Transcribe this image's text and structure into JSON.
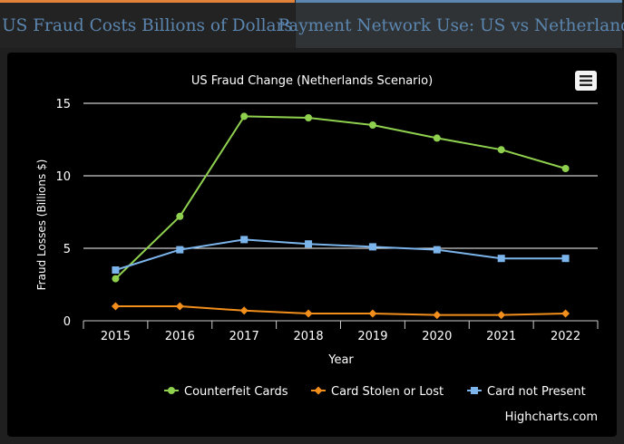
{
  "tabs": [
    {
      "label": "US Fraud Costs Billions of Dollars",
      "active": true
    },
    {
      "label": "Payment Network Use: US vs Netherlands",
      "active": false
    }
  ],
  "colors": {
    "tab_active_accent": "#e0823a",
    "tab_inactive_accent": "#5b86b0",
    "tab_text": "#5b86b0",
    "chart_bg": "#000000",
    "grid": "#ffffff",
    "text": "#ffffff"
  },
  "menu_icon": "hamburger-menu-icon",
  "credits": "Highcharts.com",
  "chart_data": {
    "type": "line",
    "title": "US Fraud Change (Netherlands Scenario)",
    "xlabel": "Year",
    "ylabel": "Fraud Losses (Billions $)",
    "x": [
      "2015",
      "2016",
      "2017",
      "2018",
      "2019",
      "2020",
      "2021",
      "2022"
    ],
    "ylim": [
      0,
      15
    ],
    "yticks": [
      0,
      5,
      10,
      15
    ],
    "grid": true,
    "legend": "bottom-right",
    "series": [
      {
        "name": "Counterfeit Cards",
        "color": "#8fd14f",
        "marker": "circle",
        "values": [
          2.9,
          7.2,
          14.1,
          14.0,
          13.5,
          12.6,
          11.8,
          10.5
        ]
      },
      {
        "name": "Card Stolen or Lost",
        "color": "#f28f1c",
        "marker": "diamond",
        "values": [
          1.0,
          1.0,
          0.7,
          0.5,
          0.5,
          0.4,
          0.4,
          0.5
        ]
      },
      {
        "name": "Card not Present",
        "color": "#7cb5ec",
        "marker": "square",
        "values": [
          3.5,
          4.9,
          5.6,
          5.3,
          5.1,
          4.9,
          4.3,
          4.3
        ]
      }
    ]
  }
}
